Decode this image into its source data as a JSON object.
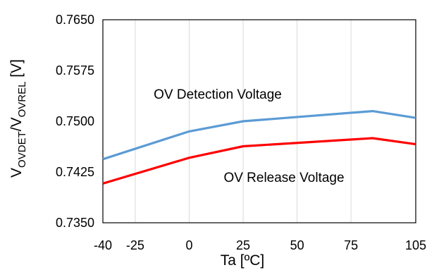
{
  "chart_data": {
    "type": "line",
    "xlabel": "Ta [ºC]",
    "ylabel": {
      "prefix": "V",
      "sub1": "OVDET",
      "mid": "/V",
      "sub2": "OVREL",
      "suffix": " [V]"
    },
    "xlim": [
      -40,
      105
    ],
    "ylim": [
      0.735,
      0.765
    ],
    "x_ticks": [
      -40,
      -25,
      0,
      25,
      50,
      75,
      105
    ],
    "x_tick_labels": [
      "-40",
      "-25",
      "0",
      "25",
      "50",
      "75",
      "105"
    ],
    "y_ticks": [
      0.735,
      0.7425,
      0.75,
      0.7575,
      0.765
    ],
    "y_tick_labels": [
      "0.7350",
      "0.7425",
      "0.7500",
      "0.7575",
      "0.7650"
    ],
    "grid": {
      "vertical": true,
      "horizontal": false
    },
    "legend": "none",
    "series": [
      {
        "color": "#5b9bd5",
        "x": [
          -40,
          0,
          25,
          85,
          105
        ],
        "values": [
          0.7444,
          0.7485,
          0.75,
          0.7515,
          0.7505
        ]
      },
      {
        "color": "#ff0000",
        "x": [
          -40,
          0,
          25,
          85,
          105
        ],
        "values": [
          0.7408,
          0.7446,
          0.7463,
          0.7475,
          0.7466
        ]
      }
    ],
    "annotations": [
      "OV Detection Voltage",
      "OV Release Voltage"
    ]
  }
}
